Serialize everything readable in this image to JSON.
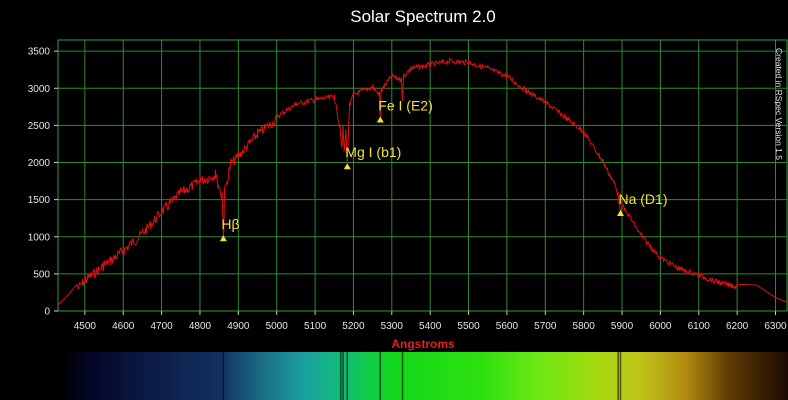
{
  "chart_data": {
    "type": "line",
    "title": "Solar Spectrum 2.0",
    "xlabel": "Angstroms",
    "ylabel": "",
    "side_note": "Created in RSpec Version 1.5",
    "xlim": [
      4430,
      6330
    ],
    "ylim": [
      0,
      3650
    ],
    "x_ticks": [
      4500,
      4600,
      4700,
      4800,
      4900,
      5000,
      5100,
      5200,
      5300,
      5400,
      5500,
      5600,
      5700,
      5800,
      5900,
      6000,
      6100,
      6200,
      6300
    ],
    "y_ticks": [
      0,
      500,
      1000,
      1500,
      2000,
      2500,
      3000,
      3500
    ],
    "grid": true,
    "line_color": "#e01010",
    "grid_color": "#2f8a2f",
    "annotation_color": "#f2e23a",
    "series": [
      {
        "name": "",
        "x": [
          4430,
          4450,
          4500,
          4550,
          4600,
          4650,
          4700,
          4750,
          4800,
          4840,
          4858,
          4861,
          4864,
          4880,
          4900,
          4950,
          5000,
          5050,
          5100,
          5150,
          5165,
          5170,
          5173,
          5176,
          5180,
          5184,
          5190,
          5200,
          5250,
          5268,
          5270,
          5272,
          5300,
          5325,
          5328,
          5331,
          5350,
          5400,
          5450,
          5500,
          5550,
          5600,
          5650,
          5700,
          5750,
          5800,
          5850,
          5880,
          5890,
          5896,
          5900,
          5920,
          5950,
          6000,
          6050,
          6100,
          6150,
          6200,
          6250,
          6280,
          6300,
          6330
        ],
        "y": [
          80,
          180,
          480,
          680,
          880,
          1110,
          1400,
          1660,
          1820,
          1900,
          1600,
          1000,
          1650,
          2050,
          2150,
          2450,
          2650,
          2820,
          2880,
          2920,
          2500,
          2200,
          2500,
          2150,
          2450,
          2050,
          2800,
          2950,
          3050,
          2950,
          2600,
          3000,
          3200,
          3150,
          2850,
          3200,
          3300,
          3350,
          3400,
          3380,
          3300,
          3200,
          3000,
          2850,
          2650,
          2450,
          2050,
          1750,
          1600,
          1350,
          1450,
          1300,
          1050,
          750,
          600,
          520,
          420,
          360,
          350,
          250,
          180,
          120
        ]
      }
    ],
    "annotations": [
      {
        "label": "Hβ",
        "x": 4861,
        "y": 980
      },
      {
        "label": "Mg I (b1)",
        "x": 5184,
        "y": 1950
      },
      {
        "label": "Fe I (E2)",
        "x": 5270,
        "y": 2580
      },
      {
        "label": "Na (D1)",
        "x": 5896,
        "y": 1320
      }
    ]
  },
  "spectrum_strip": {
    "stops": [
      {
        "offset": 0.0,
        "color": "#000000"
      },
      {
        "offset": 0.05,
        "color": "#05082a"
      },
      {
        "offset": 0.12,
        "color": "#0c1a46"
      },
      {
        "offset": 0.22,
        "color": "#12305f"
      },
      {
        "offset": 0.28,
        "color": "#1a6d86"
      },
      {
        "offset": 0.34,
        "color": "#1aa3a0"
      },
      {
        "offset": 0.4,
        "color": "#10c26a"
      },
      {
        "offset": 0.46,
        "color": "#12d81a"
      },
      {
        "offset": 0.58,
        "color": "#2ee010"
      },
      {
        "offset": 0.66,
        "color": "#6ee814"
      },
      {
        "offset": 0.74,
        "color": "#a6d80e"
      },
      {
        "offset": 0.8,
        "color": "#bfc21a"
      },
      {
        "offset": 0.86,
        "color": "#b18a10"
      },
      {
        "offset": 0.92,
        "color": "#5e3a04"
      },
      {
        "offset": 1.0,
        "color": "#1a0a00"
      }
    ],
    "absorption_lines": [
      4861,
      5167,
      5173,
      5184,
      5270,
      5328,
      5890,
      5896
    ]
  }
}
